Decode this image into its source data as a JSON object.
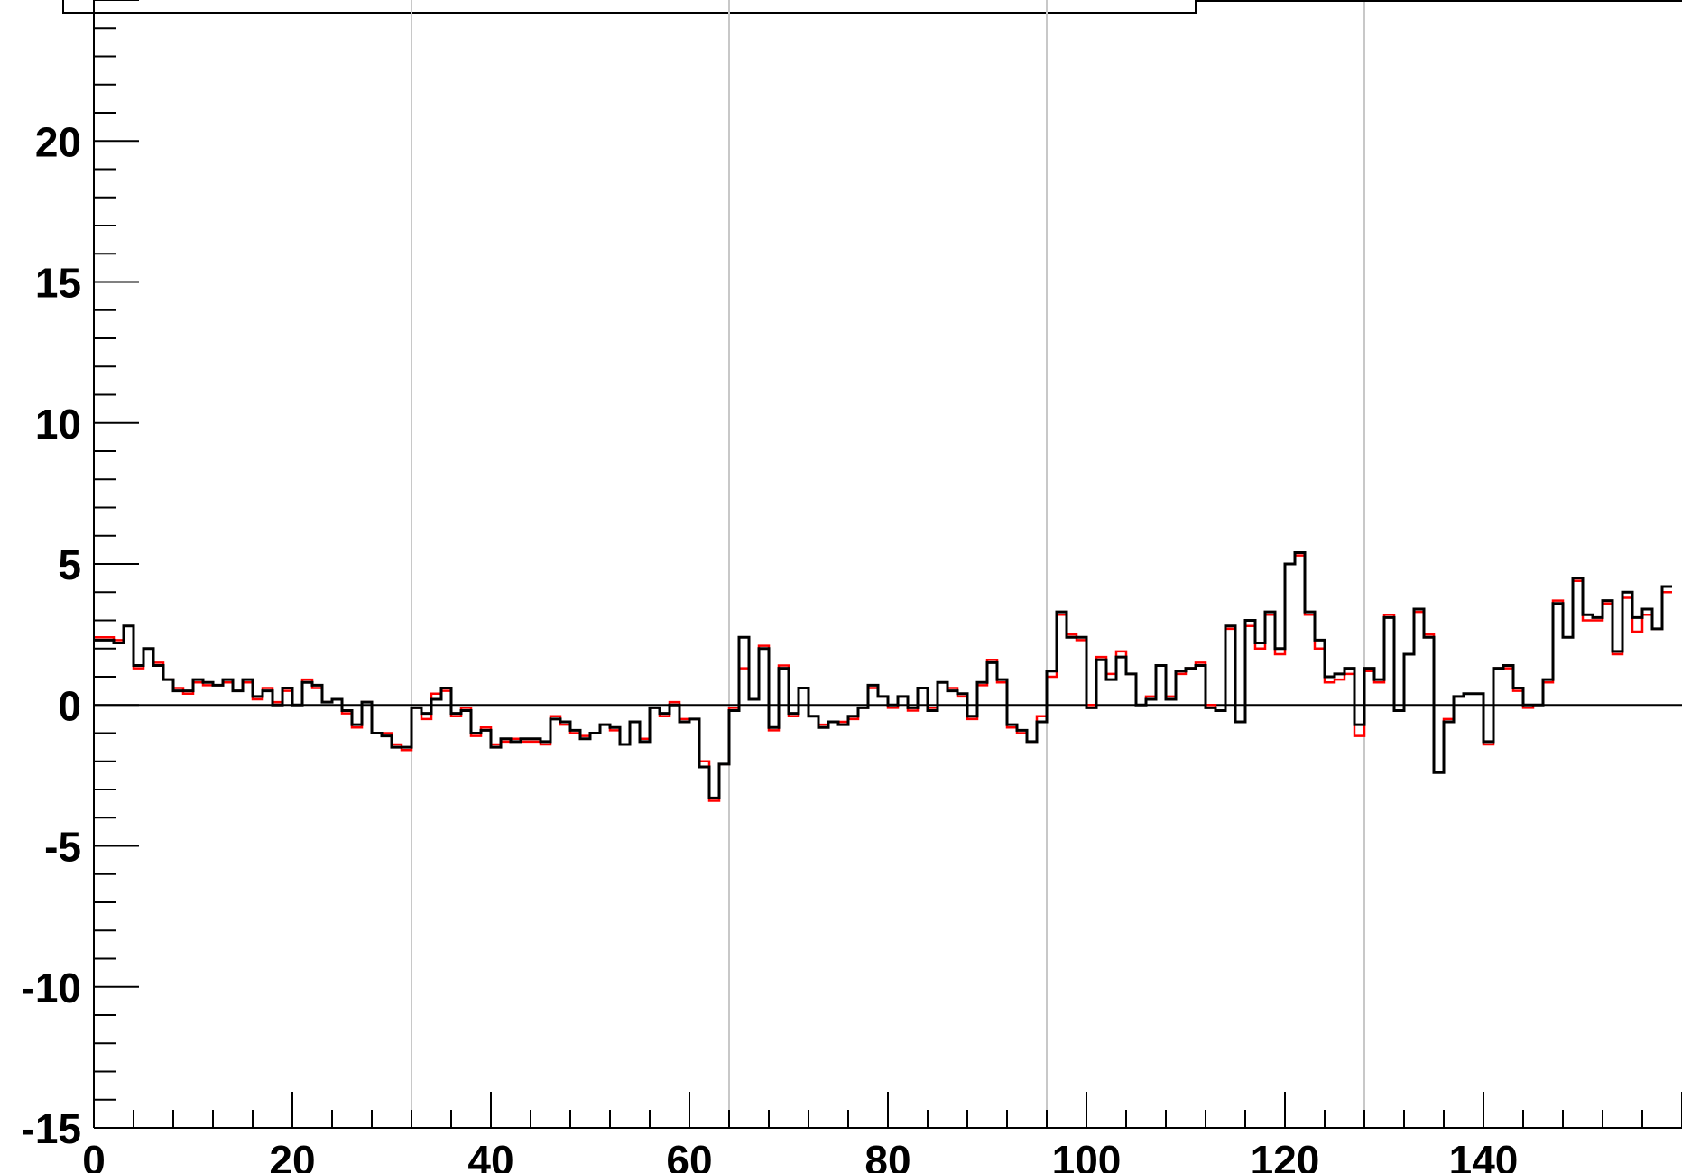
{
  "chart_data": {
    "type": "line",
    "style": "step-histogram",
    "xlim": [
      0,
      160
    ],
    "ylim": [
      -15,
      25
    ],
    "x_ticks": [
      0,
      20,
      40,
      60,
      80,
      100,
      120,
      140
    ],
    "y_ticks": [
      -15,
      -10,
      -5,
      0,
      5,
      10,
      15,
      20
    ],
    "x_tick_labels": [
      "0",
      "20",
      "40",
      "60",
      "80",
      "100",
      "120",
      "140"
    ],
    "y_tick_labels": [
      "-15",
      "-10",
      "-5",
      "0",
      "5",
      "10",
      "15",
      "20"
    ],
    "reference_gridlines_x": [
      32,
      64,
      96,
      128
    ],
    "zero_line_y": 0,
    "bin_width": 1,
    "colors": {
      "series_black": "#000000",
      "series_red": "#ff0000",
      "gridline": "#c8c8c8",
      "axis": "#000000"
    },
    "series": [
      {
        "color": "#000000",
        "values": [
          2.3,
          2.3,
          2.2,
          2.8,
          1.4,
          2.0,
          1.4,
          0.9,
          0.5,
          0.5,
          0.9,
          0.8,
          0.7,
          0.9,
          0.5,
          0.9,
          0.3,
          0.5,
          0.0,
          0.6,
          0.0,
          0.8,
          0.7,
          0.1,
          0.2,
          -0.2,
          -0.7,
          0.1,
          -1.0,
          -1.1,
          -1.5,
          -1.5,
          -0.1,
          -0.3,
          0.2,
          0.6,
          -0.3,
          -0.2,
          -1.0,
          -0.9,
          -1.5,
          -1.2,
          -1.3,
          -1.2,
          -1.2,
          -1.3,
          -0.5,
          -0.6,
          -0.9,
          -1.2,
          -1.0,
          -0.7,
          -0.8,
          -1.4,
          -0.6,
          -1.3,
          -0.1,
          -0.3,
          0.0,
          -0.6,
          -0.5,
          -2.2,
          -3.3,
          -2.1,
          -0.2,
          2.4,
          0.2,
          2.0,
          -0.8,
          1.3,
          -0.3,
          0.6,
          -0.4,
          -0.8,
          -0.6,
          -0.7,
          -0.4,
          -0.1,
          0.7,
          0.3,
          0.0,
          0.3,
          -0.1,
          0.6,
          -0.2,
          0.8,
          0.5,
          0.4,
          -0.4,
          0.8,
          1.5,
          0.9,
          -0.7,
          -0.9,
          -1.3,
          -0.6,
          1.2,
          3.3,
          2.4,
          2.4,
          -0.1,
          1.6,
          0.9,
          1.7,
          1.1,
          0.0,
          0.2,
          1.4,
          0.2,
          1.2,
          1.3,
          1.4,
          -0.1,
          -0.2,
          2.8,
          -0.6,
          3.0,
          2.2,
          3.3,
          2.0,
          5.0,
          5.4,
          3.3,
          2.3,
          1.0,
          1.1,
          1.3,
          -0.7,
          1.3,
          0.9,
          3.1,
          -0.2,
          1.8,
          3.4,
          2.4,
          -2.4,
          -0.6,
          0.3,
          0.4,
          0.4,
          -1.3,
          1.3,
          1.4,
          0.6,
          0.0,
          0.0,
          0.9,
          3.6,
          2.4,
          4.5,
          3.2,
          3.1,
          3.7,
          1.9,
          4.0,
          3.1,
          3.4,
          2.7,
          4.2
        ]
      },
      {
        "color": "#ff0000",
        "values": [
          2.4,
          2.4,
          2.3,
          2.8,
          1.3,
          2.0,
          1.5,
          0.9,
          0.6,
          0.4,
          0.8,
          0.7,
          0.7,
          0.8,
          0.5,
          0.8,
          0.2,
          0.6,
          0.1,
          0.5,
          0.0,
          0.9,
          0.6,
          0.1,
          0.2,
          -0.3,
          -0.8,
          0.1,
          -1.0,
          -1.0,
          -1.4,
          -1.6,
          -0.1,
          -0.5,
          0.4,
          0.5,
          -0.4,
          -0.1,
          -1.1,
          -0.8,
          -1.4,
          -1.3,
          -1.2,
          -1.3,
          -1.3,
          -1.4,
          -0.4,
          -0.7,
          -1.0,
          -1.1,
          -1.0,
          -0.7,
          -0.9,
          -1.4,
          -0.6,
          -1.2,
          -0.1,
          -0.4,
          0.1,
          -0.5,
          -0.5,
          -2.0,
          -3.4,
          -2.1,
          -0.1,
          1.3,
          0.2,
          2.1,
          -0.9,
          1.4,
          -0.4,
          0.6,
          -0.4,
          -0.7,
          -0.6,
          -0.6,
          -0.5,
          -0.1,
          0.6,
          0.3,
          -0.1,
          0.3,
          -0.2,
          0.6,
          -0.1,
          0.8,
          0.6,
          0.3,
          -0.5,
          0.7,
          1.6,
          0.8,
          -0.8,
          -1.0,
          -1.3,
          -0.4,
          1.0,
          3.2,
          2.5,
          2.3,
          0.0,
          1.7,
          1.1,
          1.9,
          1.1,
          0.0,
          0.3,
          1.4,
          0.3,
          1.1,
          1.3,
          1.5,
          0.0,
          -0.2,
          2.7,
          -0.6,
          2.8,
          2.0,
          3.2,
          1.8,
          5.0,
          5.3,
          3.2,
          2.0,
          0.8,
          0.9,
          1.1,
          -1.1,
          1.2,
          0.8,
          3.2,
          -0.2,
          1.8,
          3.3,
          2.5,
          -2.4,
          -0.5,
          0.3,
          0.4,
          0.4,
          -1.4,
          1.3,
          1.3,
          0.5,
          -0.1,
          0.0,
          0.8,
          3.7,
          2.4,
          4.4,
          3.0,
          3.0,
          3.6,
          1.8,
          3.8,
          2.6,
          3.2,
          2.7,
          4.0
        ]
      }
    ]
  }
}
